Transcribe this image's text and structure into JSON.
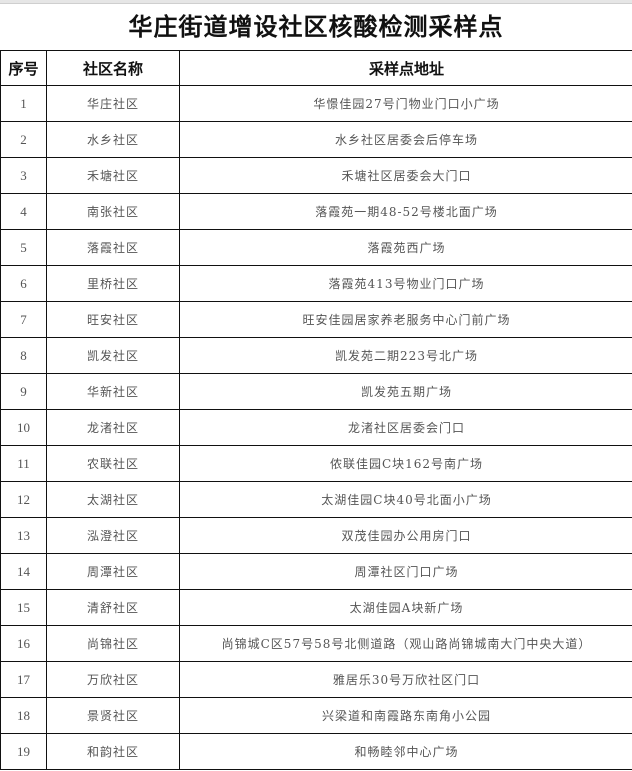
{
  "title": "华庄街道增设社区核酸检测采样点",
  "columns": [
    "序号",
    "社区名称",
    "采样点地址"
  ],
  "rows": [
    {
      "no": "1",
      "community": "华庄社区",
      "address": "华憬佳园27号门物业门口小广场"
    },
    {
      "no": "2",
      "community": "水乡社区",
      "address": "水乡社区居委会后停车场"
    },
    {
      "no": "3",
      "community": "禾塘社区",
      "address": "禾塘社区居委会大门口"
    },
    {
      "no": "4",
      "community": "南张社区",
      "address": "落霞苑一期48-52号楼北面广场"
    },
    {
      "no": "5",
      "community": "落霞社区",
      "address": "落霞苑西广场"
    },
    {
      "no": "6",
      "community": "里桥社区",
      "address": "落霞苑413号物业门口广场"
    },
    {
      "no": "7",
      "community": "旺安社区",
      "address": "旺安佳园居家养老服务中心门前广场"
    },
    {
      "no": "8",
      "community": "凯发社区",
      "address": "凯发苑二期223号北广场"
    },
    {
      "no": "9",
      "community": "华新社区",
      "address": "凯发苑五期广场"
    },
    {
      "no": "10",
      "community": "龙渚社区",
      "address": "龙渚社区居委会门口"
    },
    {
      "no": "11",
      "community": "农联社区",
      "address": "侬联佳园C块162号南广场"
    },
    {
      "no": "12",
      "community": "太湖社区",
      "address": "太湖佳园C块40号北面小广场"
    },
    {
      "no": "13",
      "community": "泓澄社区",
      "address": "双茂佳园办公用房门口"
    },
    {
      "no": "14",
      "community": "周潭社区",
      "address": "周潭社区门口广场"
    },
    {
      "no": "15",
      "community": "清舒社区",
      "address": "太湖佳园A块新广场"
    },
    {
      "no": "16",
      "community": "尚锦社区",
      "address": "尚锦城C区57号58号北侧道路（观山路尚锦城南大门中央大道）"
    },
    {
      "no": "17",
      "community": "万欣社区",
      "address": "雅居乐30号万欣社区门口"
    },
    {
      "no": "18",
      "community": "景贤社区",
      "address": "兴梁道和南霞路东南角小公园"
    },
    {
      "no": "19",
      "community": "和韵社区",
      "address": "和畅睦邻中心广场"
    }
  ]
}
